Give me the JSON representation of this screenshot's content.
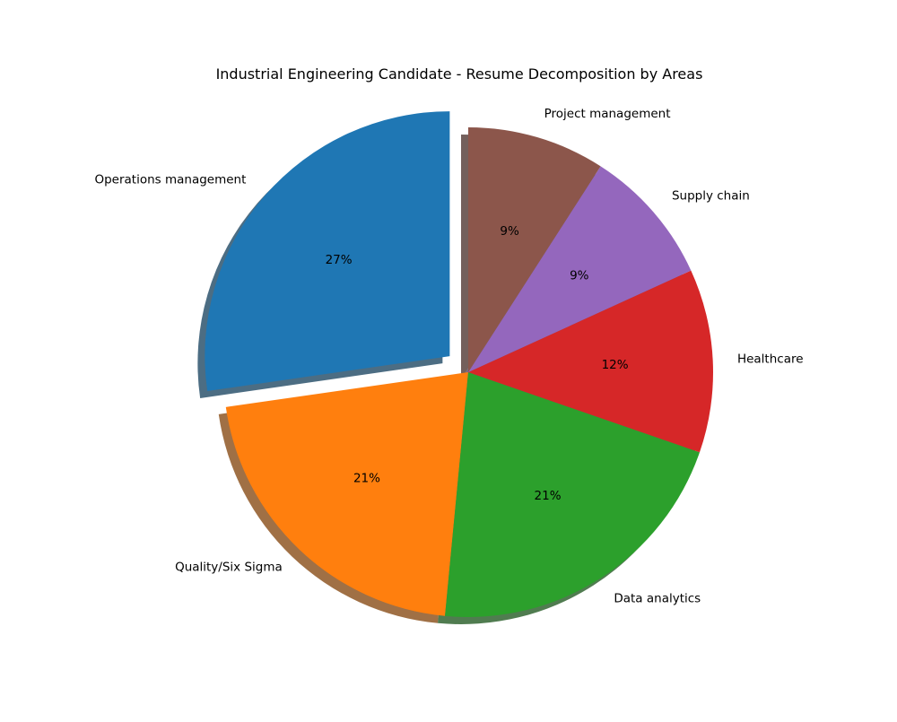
{
  "chart_data": {
    "type": "pie",
    "title": "Industrial Engineering Candidate - Resume Decomposition by Areas",
    "categories": [
      "Operations management",
      "Quality/Six Sigma",
      "Data analytics",
      "Healthcare",
      "Supply chain",
      "Project management"
    ],
    "values": [
      27.27,
      21.21,
      21.21,
      12.12,
      9.09,
      9.09
    ],
    "percent_labels": [
      "27%",
      "21%",
      "21%",
      "12%",
      "9%",
      "9%"
    ],
    "colors": [
      "#1f77b4",
      "#ff7f0e",
      "#2ca02c",
      "#d62728",
      "#9467bd",
      "#8c564b"
    ],
    "exploded": [
      "Operations management"
    ],
    "start_angle_deg": 90,
    "direction": "counterclockwise",
    "shadow": true
  }
}
